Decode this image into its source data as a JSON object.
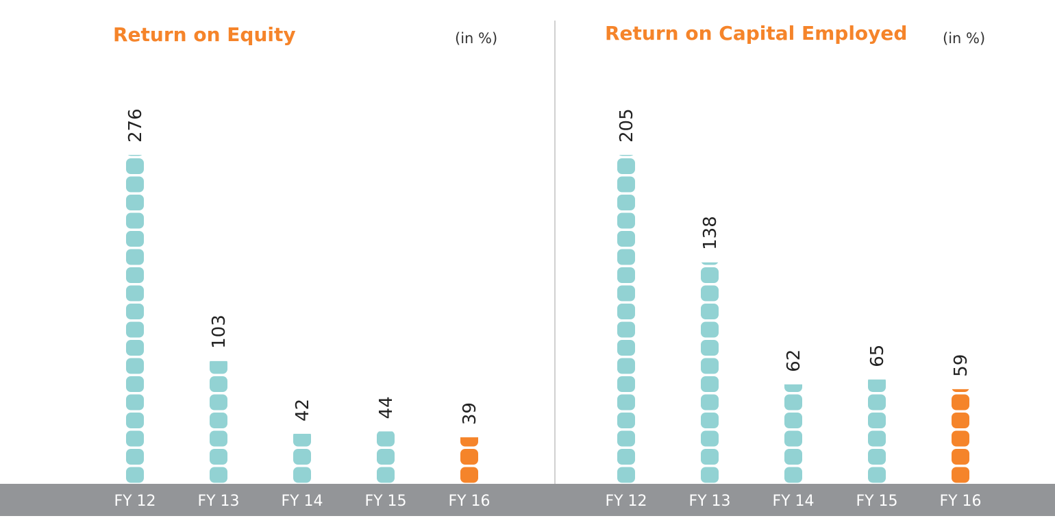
{
  "colors": {
    "accent": "#f5842a",
    "bar": "#92d2d3",
    "baseline": "#939598",
    "axis_text": "#ffffff",
    "divider": "#a0a0a0"
  },
  "chart_data": [
    {
      "type": "bar",
      "title": "Return on Equity",
      "unit": "(in %)",
      "categories": [
        "FY 12",
        "FY 13",
        "FY 14",
        "FY 15",
        "FY 16"
      ],
      "values": [
        276,
        103,
        42,
        44,
        39
      ],
      "highlight_index": 4,
      "ylim": [
        0,
        276
      ],
      "grid": false,
      "legend": "none"
    },
    {
      "type": "bar",
      "title": "Return on Capital Employed",
      "unit": "(in %)",
      "categories": [
        "FY 12",
        "FY 13",
        "FY 14",
        "FY 15",
        "FY 16"
      ],
      "values": [
        205,
        138,
        62,
        65,
        59
      ],
      "highlight_index": 4,
      "ylim": [
        0,
        205
      ],
      "grid": false,
      "legend": "none"
    }
  ]
}
